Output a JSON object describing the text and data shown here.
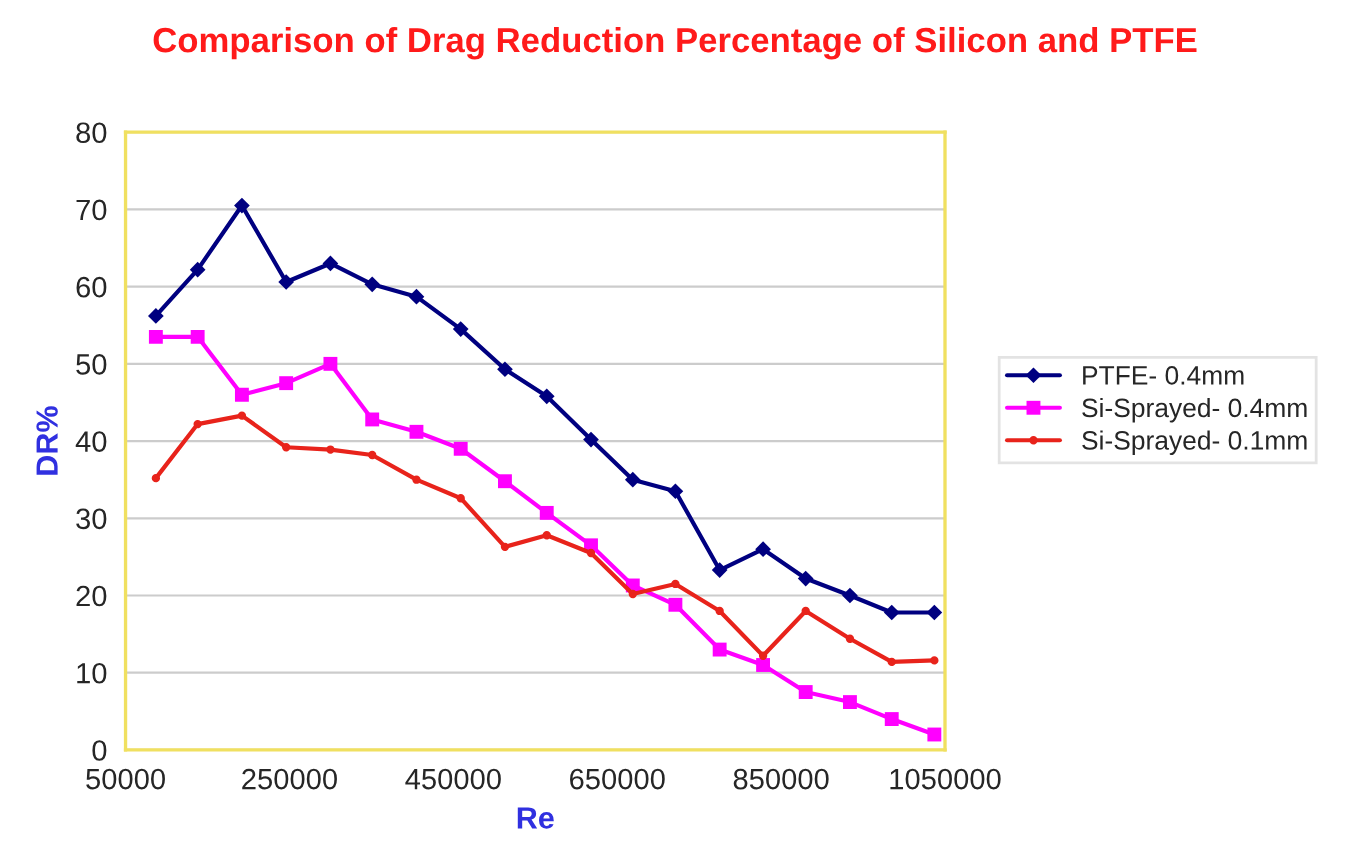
{
  "chart_data": {
    "type": "line",
    "title": "Comparison of Drag Reduction Percentage of Silicon and PTFE",
    "xlabel": "Re",
    "ylabel": "DR%",
    "x": [
      87000,
      138000,
      192000,
      246000,
      300000,
      351000,
      405000,
      459000,
      513000,
      564000,
      618000,
      669000,
      721000,
      775000,
      828000,
      880000,
      934000,
      985000,
      1037000
    ],
    "series": [
      {
        "name": "PTFE- 0.4mm",
        "color": "#000080",
        "marker": "diamond",
        "values": [
          56.2,
          62.2,
          70.5,
          60.6,
          63,
          60.3,
          58.7,
          54.5,
          49.3,
          45.8,
          40.2,
          35,
          33.5,
          23.3,
          26,
          22.2,
          20,
          17.8,
          17.8
        ]
      },
      {
        "name": "Si-Sprayed- 0.4mm",
        "color": "#ff00ff",
        "marker": "square",
        "values": [
          53.5,
          53.5,
          46,
          47.5,
          50,
          42.8,
          41.2,
          39,
          34.8,
          30.7,
          26.5,
          21.3,
          18.8,
          13,
          11,
          7.5,
          6.2,
          4,
          2
        ]
      },
      {
        "name": "Si-Sprayed- 0.1mm",
        "color": "#e8231b",
        "marker": "circle",
        "values": [
          35.2,
          42.2,
          43.3,
          39.2,
          38.9,
          38.2,
          35,
          32.6,
          26.3,
          27.8,
          25.5,
          20.2,
          21.5,
          18,
          12.2,
          18,
          14.4,
          11.4,
          11.6
        ]
      }
    ],
    "xlim": [
      50000,
      1050000
    ],
    "xticks": [
      50000,
      250000,
      450000,
      650000,
      850000,
      1050000
    ],
    "ylim": [
      0,
      80
    ],
    "yticks": [
      0,
      10,
      20,
      30,
      40,
      50,
      60,
      70,
      80
    ],
    "grid": "y",
    "legend": "right"
  }
}
